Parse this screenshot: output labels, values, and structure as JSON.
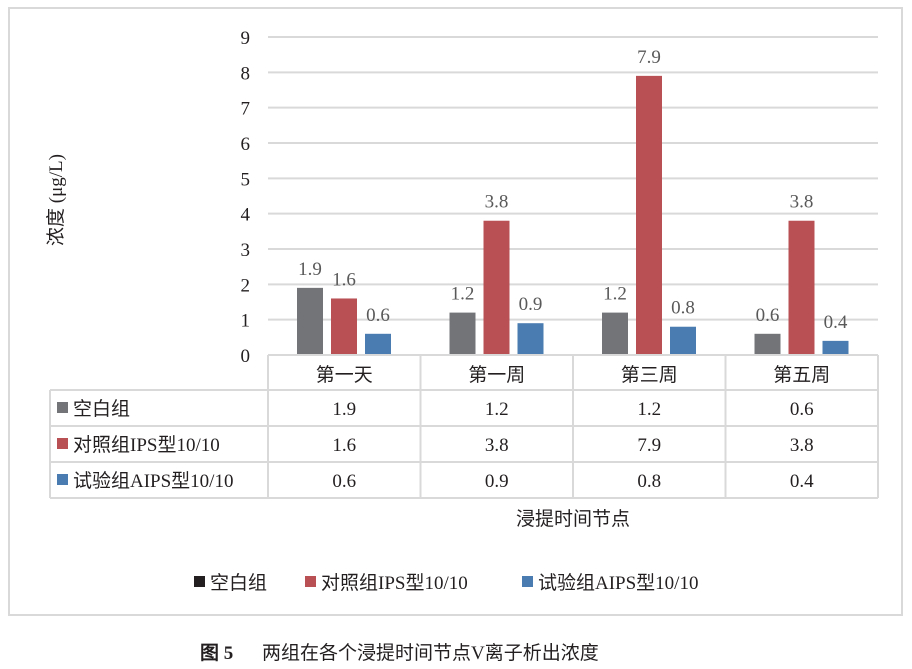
{
  "chart_data": {
    "type": "bar",
    "ylabel": "浓度 (μg/L)",
    "xlabel": "浸提时间节点",
    "ylim": [
      0,
      9
    ],
    "yticks": [
      "0",
      "1",
      "2",
      "3",
      "4",
      "5",
      "6",
      "7",
      "8",
      "9"
    ],
    "grid": true,
    "categories": [
      "第一天",
      "第一周",
      "第三周",
      "第五周"
    ],
    "series": [
      {
        "name": "空白组",
        "values": [
          1.9,
          1.2,
          1.2,
          0.6
        ],
        "color": "#737477",
        "legend_color": "#231f20"
      },
      {
        "name": "对照组IPS型10/10",
        "values": [
          1.6,
          3.8,
          7.9,
          3.8
        ],
        "color": "#b85054",
        "legend_color": "#b85054"
      },
      {
        "name": "试验组AIPS型10/10",
        "values": [
          0.6,
          0.9,
          0.8,
          0.4
        ],
        "color": "#4a7cb1",
        "legend_color": "#4a7cb1"
      }
    ],
    "data_labels": [
      [
        "1.9",
        "1.2",
        "1.2",
        "0.6"
      ],
      [
        "1.6",
        "3.8",
        "7.9",
        "3.8"
      ],
      [
        "0.6",
        "0.9",
        "0.8",
        "0.4"
      ]
    ],
    "data_table": true,
    "legend_position": "bottom"
  },
  "caption": {
    "label": "图 5",
    "text": "两组在各个浸提时间节点V离子析出浓度"
  }
}
